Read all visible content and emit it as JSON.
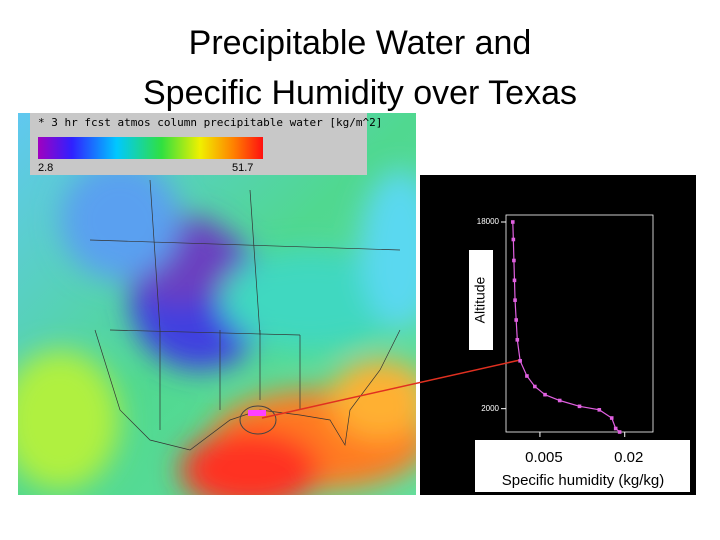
{
  "title": [
    "Precipitable Water and",
    "Specific Humidity over Texas"
  ],
  "map": {
    "colorbar": {
      "title": "* 3 hr fcst atmos column precipitable water [kg/m^2]",
      "min": 2.8,
      "max": 51.7
    }
  },
  "chart_data": {
    "type": "line",
    "x_label": "Specific humidity (kg/kg)",
    "y_label": "Altitude",
    "series": [
      {
        "color": "#e060e0",
        "x": [
          0.0002,
          0.0003,
          0.0004,
          0.0005,
          0.0006,
          0.0008,
          0.001,
          0.0015,
          0.0027,
          0.0041,
          0.0059,
          0.0085,
          0.012,
          0.0155,
          0.0177,
          0.0184,
          0.0191
        ],
        "values": [
          18000,
          16500,
          14700,
          13000,
          11300,
          9600,
          7900,
          6100,
          4800,
          3900,
          3200,
          2700,
          2200,
          1900,
          1200,
          300,
          0
        ]
      }
    ],
    "xlim": [
      -0.001,
      0.025
    ],
    "ylim": [
      0,
      18600
    ],
    "xticks": [
      0.005,
      0.02
    ],
    "yticks": [
      2000,
      18000
    ]
  }
}
